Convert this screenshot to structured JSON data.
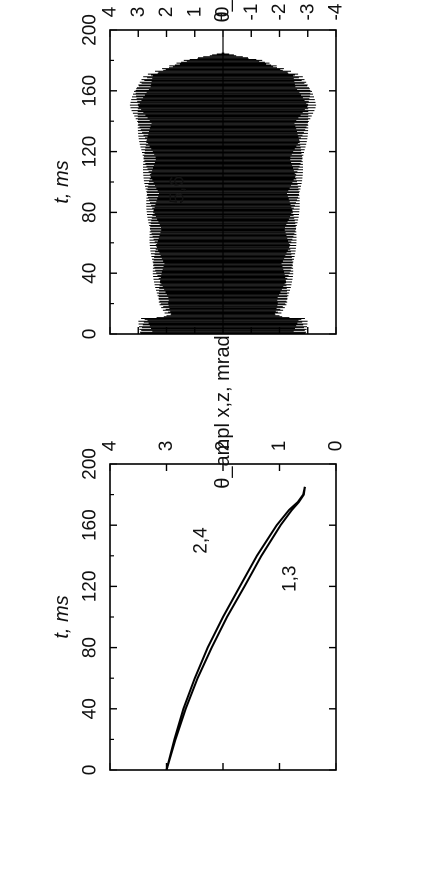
{
  "chart_data": [
    {
      "type": "line",
      "xlabel": "t, ms",
      "ylabel": "θ_ampl x,z, mrad",
      "xlim": [
        0,
        200
      ],
      "ylim": [
        0,
        4
      ],
      "x_ticks": [
        "0",
        "40",
        "80",
        "120",
        "160",
        "200"
      ],
      "y_ticks": [
        "0",
        "1",
        "2",
        "3",
        "4"
      ],
      "annotations": [
        "2,4",
        "1,3"
      ],
      "series": [
        {
          "label": "2,4",
          "x": [
            0,
            20,
            40,
            60,
            80,
            100,
            120,
            140,
            160,
            170,
            175,
            180,
            185
          ],
          "y": [
            3.0,
            2.86,
            2.7,
            2.5,
            2.27,
            2.0,
            1.7,
            1.4,
            1.05,
            0.83,
            0.68,
            0.58,
            0.55
          ]
        },
        {
          "label": "1,3",
          "x": [
            0,
            20,
            40,
            60,
            80,
            100,
            120,
            140,
            160,
            170,
            175,
            180,
            185
          ],
          "y": [
            3.0,
            2.84,
            2.66,
            2.45,
            2.2,
            1.93,
            1.62,
            1.32,
            0.98,
            0.78,
            0.66,
            0.57,
            0.55
          ]
        }
      ]
    },
    {
      "type": "area",
      "xlabel": "t, ms",
      "ylabel": "θ_s, mrad",
      "xlim": [
        0,
        200
      ],
      "ylim": [
        -4,
        4
      ],
      "x_ticks": [
        "0",
        "40",
        "80",
        "120",
        "160",
        "200"
      ],
      "y_ticks": [
        "-4",
        "-3",
        "-2",
        "-1",
        "0",
        "1",
        "2",
        "3",
        "4"
      ],
      "annotations": [
        "5,6"
      ],
      "x": [
        0,
        10,
        12,
        20,
        40,
        60,
        80,
        100,
        120,
        140,
        150,
        160,
        170,
        180,
        185
      ],
      "envelope": [
        3.0,
        3.0,
        2.0,
        2.3,
        2.5,
        2.6,
        2.7,
        2.8,
        2.9,
        3.1,
        3.3,
        3.2,
        2.8,
        1.4,
        0.0
      ]
    }
  ]
}
